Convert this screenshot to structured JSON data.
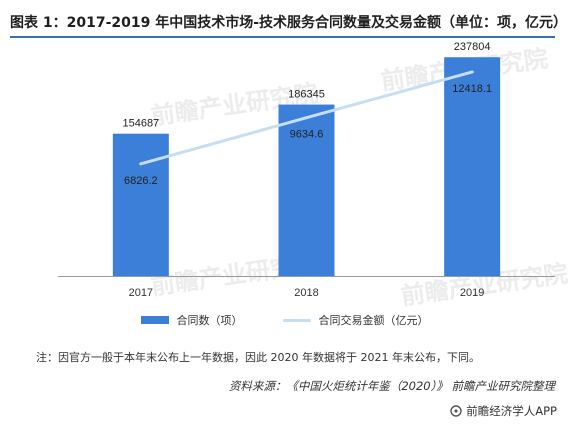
{
  "title": "图表 1：2017-2019 年中国技术市场-技术服务合同数量及交易金额（单位：项，亿元）",
  "note": "注：因官方一般于本年末公布上一年数据，因此 2020 年数据将于 2021 年末公布，下同。",
  "source": "资料来源：《中国火炬统计年鉴（2020）》 前瞻产业研究院整理",
  "brand": "前瞻经济学人APP",
  "watermark": "前瞻产业研究院",
  "colors": {
    "bar": "#3b7fd9",
    "line": "#c6def2",
    "axis": "#999999"
  },
  "chart_data": {
    "type": "bar",
    "categories": [
      "2017",
      "2018",
      "2019"
    ],
    "series": [
      {
        "name": "合同数（项）",
        "type": "bar",
        "values": [
          154687,
          186345,
          237804
        ],
        "labels": [
          "154687",
          "186345",
          "237804"
        ]
      },
      {
        "name": "合同交易金额（亿元）",
        "type": "line",
        "values": [
          6826.2,
          9634.6,
          12418.1
        ],
        "labels": [
          "6826.2",
          "9634.6",
          "12418.1"
        ]
      }
    ],
    "bar_ylim": [
      0,
      250000
    ],
    "line_ylim": [
      0,
      14000
    ],
    "legend": "bottom",
    "grid": false
  }
}
